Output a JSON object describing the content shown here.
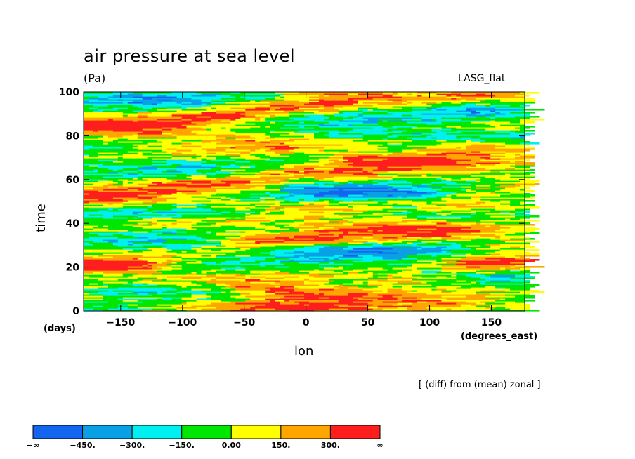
{
  "chart_data": {
    "type": "heatmap",
    "title": "air pressure at sea level",
    "units": "(Pa)",
    "source_label": "LASG_flat",
    "xlabel": "lon",
    "x_unit": "(degrees_east)",
    "ylabel": "time",
    "y_unit": "(days)",
    "annotation": "[ (diff) from (mean) zonal ]",
    "xlim": [
      -180,
      177
    ],
    "ylim": [
      0,
      100
    ],
    "x_ticks": [
      -150,
      -100,
      -50,
      0,
      50,
      100,
      150
    ],
    "x_tick_labels": [
      "−150",
      "−100",
      "−50",
      "0",
      "50",
      "100",
      "150"
    ],
    "y_ticks": [
      0,
      20,
      40,
      60,
      80,
      100
    ],
    "y_tick_labels": [
      "0",
      "20",
      "40",
      "60",
      "80",
      "100"
    ],
    "levels": [
      -450,
      -300,
      -150,
      0,
      150,
      300
    ],
    "colorbar_labels": [
      "−∞",
      "−450.",
      "−300.",
      "−150.",
      "0.00",
      "150.",
      "300.",
      "∞"
    ],
    "colors": [
      "#1464f0",
      "#0aa0e6",
      "#00f0f0",
      "#00e600",
      "#ffff00",
      "#ffa500",
      "#ff1e1e"
    ],
    "bands": [
      {
        "time": 2,
        "lon_from": -130,
        "lon_to": 20,
        "value": 330
      },
      {
        "time": 8,
        "lon_from": -30,
        "lon_to": 60,
        "value": 300
      },
      {
        "time": 14,
        "lon_from": 60,
        "lon_to": 130,
        "value": 260
      },
      {
        "time": 21,
        "lon_from": -180,
        "lon_to": -130,
        "value": 320
      },
      {
        "time": 21,
        "lon_from": 130,
        "lon_to": 177,
        "value": 300
      },
      {
        "time": 33,
        "lon_from": -60,
        "lon_to": 20,
        "value": 320
      },
      {
        "time": 38,
        "lon_from": 20,
        "lon_to": 110,
        "value": 240
      },
      {
        "time": 48,
        "lon_from": 110,
        "lon_to": 177,
        "value": 310
      },
      {
        "time": 52,
        "lon_from": -180,
        "lon_to": -120,
        "value": 220
      },
      {
        "time": 58,
        "lon_from": -120,
        "lon_to": -40,
        "value": 320
      },
      {
        "time": 63,
        "lon_from": -40,
        "lon_to": 40,
        "value": 260
      },
      {
        "time": 69,
        "lon_from": 40,
        "lon_to": 110,
        "value": 300
      },
      {
        "time": 75,
        "lon_from": 110,
        "lon_to": 177,
        "value": 310
      },
      {
        "time": 84,
        "lon_from": -180,
        "lon_to": -110,
        "value": 320
      },
      {
        "time": 89,
        "lon_from": -110,
        "lon_to": -40,
        "value": 260
      },
      {
        "time": 94,
        "lon_from": -60,
        "lon_to": 20,
        "value": 340
      },
      {
        "time": 99,
        "lon_from": 0,
        "lon_to": 60,
        "value": 240
      },
      {
        "time": 10,
        "lon_from": -150,
        "lon_to": -80,
        "value": -380
      },
      {
        "time": 28,
        "lon_from": 0,
        "lon_to": 120,
        "value": -330
      },
      {
        "time": 45,
        "lon_from": -150,
        "lon_to": -30,
        "value": -350
      },
      {
        "time": 54,
        "lon_from": 0,
        "lon_to": 100,
        "value": -320
      },
      {
        "time": 80,
        "lon_from": 0,
        "lon_to": 120,
        "value": -250
      },
      {
        "time": 92,
        "lon_from": 110,
        "lon_to": 177,
        "value": -300
      },
      {
        "time": 97,
        "lon_from": -180,
        "lon_to": -100,
        "value": -260
      }
    ]
  }
}
